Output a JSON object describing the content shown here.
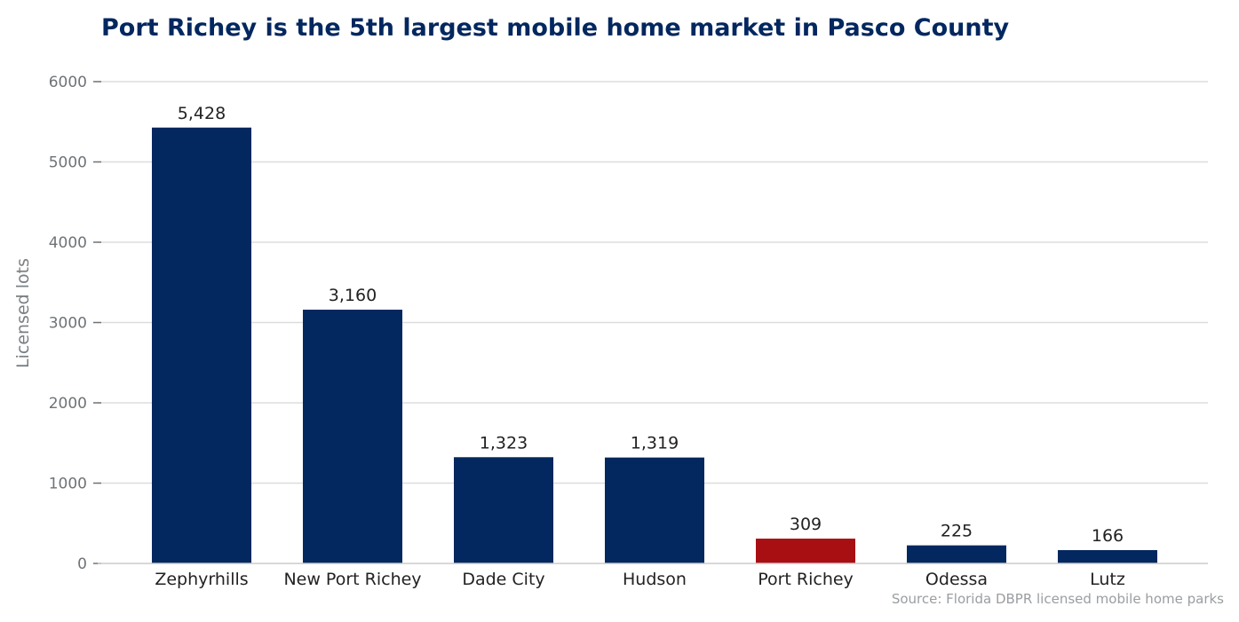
{
  "chart_data": {
    "type": "bar",
    "title": "Port Richey is the 5th largest mobile home market in Pasco County",
    "ylabel": "Licensed lots",
    "xlabel": "",
    "categories": [
      "Zephyrhills",
      "New Port Richey",
      "Dade City",
      "Hudson",
      "Port Richey",
      "Odessa",
      "Lutz"
    ],
    "values": [
      5428,
      3160,
      1323,
      1319,
      309,
      225,
      166
    ],
    "data_labels": [
      "5,428",
      "3,160",
      "1,323",
      "1,319",
      "309",
      "225",
      "166"
    ],
    "highlight_category": "Port Richey",
    "yticks": [
      0,
      1000,
      2000,
      3000,
      4000,
      5000,
      6000
    ],
    "ylim": [
      0,
      6000
    ],
    "grid": "horizontal",
    "source": "Source: Florida DBPR licensed mobile home parks",
    "colors": {
      "bar": "#03275f",
      "highlight": "#a80f13",
      "grid": "#dddddd",
      "title": "#03275f"
    }
  }
}
